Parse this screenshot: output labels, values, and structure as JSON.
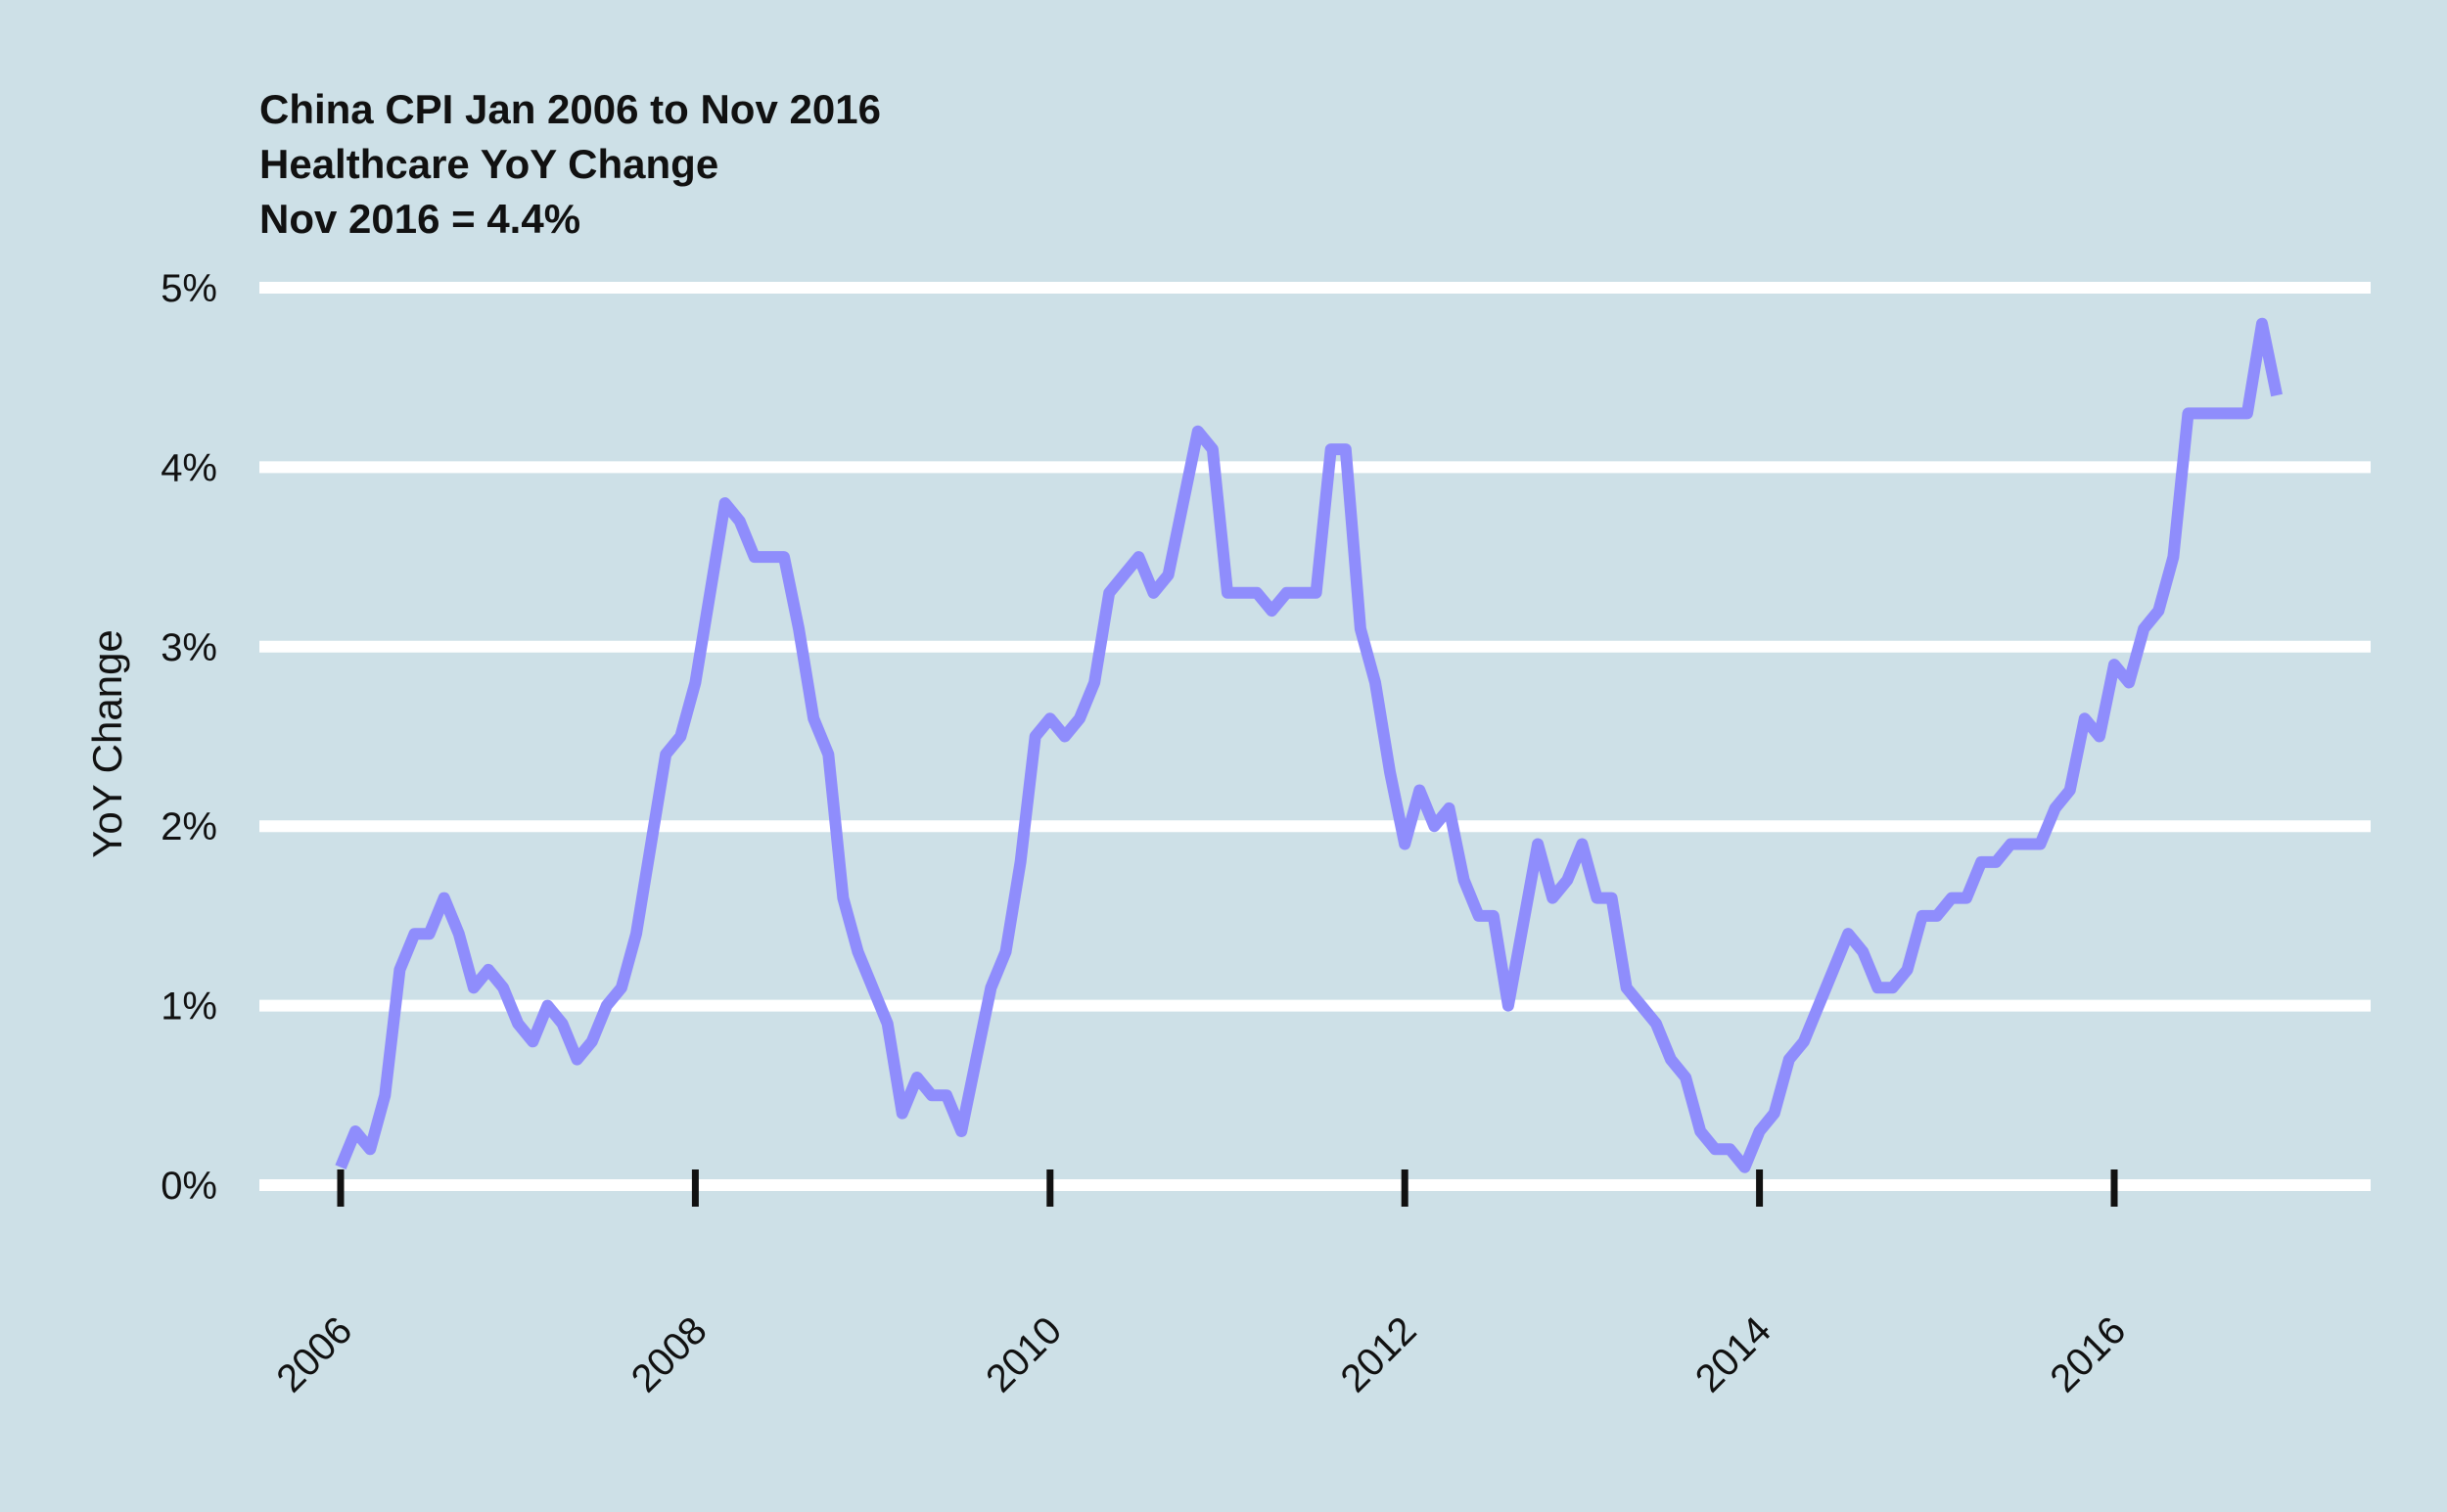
{
  "chart_data": {
    "type": "line",
    "title_lines": [
      "China CPI Jan 2006 to Nov 2016",
      "Healthcare YoY Change",
      "Nov 2016 = 4.4%"
    ],
    "xlabel": "",
    "ylabel": "YoY Change",
    "x_ticks": [
      "2006",
      "2008",
      "2010",
      "2012",
      "2014",
      "2016"
    ],
    "y_ticks": [
      "0%",
      "1%",
      "2%",
      "3%",
      "4%",
      "5%"
    ],
    "ylim": [
      0,
      5
    ],
    "xlim": [
      "2005-07",
      "2017-06"
    ],
    "grid": "horizontal",
    "colors": {
      "background": "#cde0e7",
      "gridline": "#ffffff",
      "line": "#8f8dfc",
      "text": "#111111"
    },
    "series": [
      {
        "start": "2006-01",
        "frequency": "monthly",
        "values": [
          0.1,
          0.3,
          0.2,
          0.5,
          1.2,
          1.4,
          1.4,
          1.6,
          1.4,
          1.1,
          1.2,
          1.1,
          0.9,
          0.8,
          1.0,
          0.9,
          0.7,
          0.8,
          1.0,
          1.1,
          1.4,
          1.9,
          2.4,
          2.5,
          2.8,
          3.3,
          3.8,
          3.7,
          3.5,
          3.5,
          3.5,
          3.1,
          2.6,
          2.4,
          1.6,
          1.3,
          1.1,
          0.9,
          0.4,
          0.6,
          0.5,
          0.5,
          0.3,
          0.7,
          1.1,
          1.3,
          1.8,
          2.5,
          2.6,
          2.5,
          2.6,
          2.8,
          3.3,
          3.4,
          3.5,
          3.3,
          3.4,
          3.8,
          4.2,
          4.1,
          3.3,
          3.3,
          3.3,
          3.2,
          3.3,
          3.3,
          3.3,
          4.1,
          4.1,
          3.1,
          2.8,
          2.3,
          1.9,
          2.2,
          2.0,
          2.1,
          1.7,
          1.5,
          1.5,
          1.0,
          1.45,
          1.9,
          1.6,
          1.7,
          1.9,
          1.6,
          1.6,
          1.1,
          1.0,
          0.9,
          0.7,
          0.6,
          0.3,
          0.2,
          0.2,
          0.1,
          0.3,
          0.4,
          0.7,
          0.8,
          1.0,
          1.2,
          1.4,
          1.3,
          1.1,
          1.1,
          1.2,
          1.5,
          1.5,
          1.6,
          1.6,
          1.8,
          1.8,
          1.9,
          1.9,
          1.9,
          2.1,
          2.2,
          2.6,
          2.5,
          2.9,
          2.8,
          3.1,
          3.2,
          3.5,
          4.3,
          4.3,
          4.3,
          4.3,
          4.3,
          4.8,
          4.4
        ]
      }
    ]
  }
}
